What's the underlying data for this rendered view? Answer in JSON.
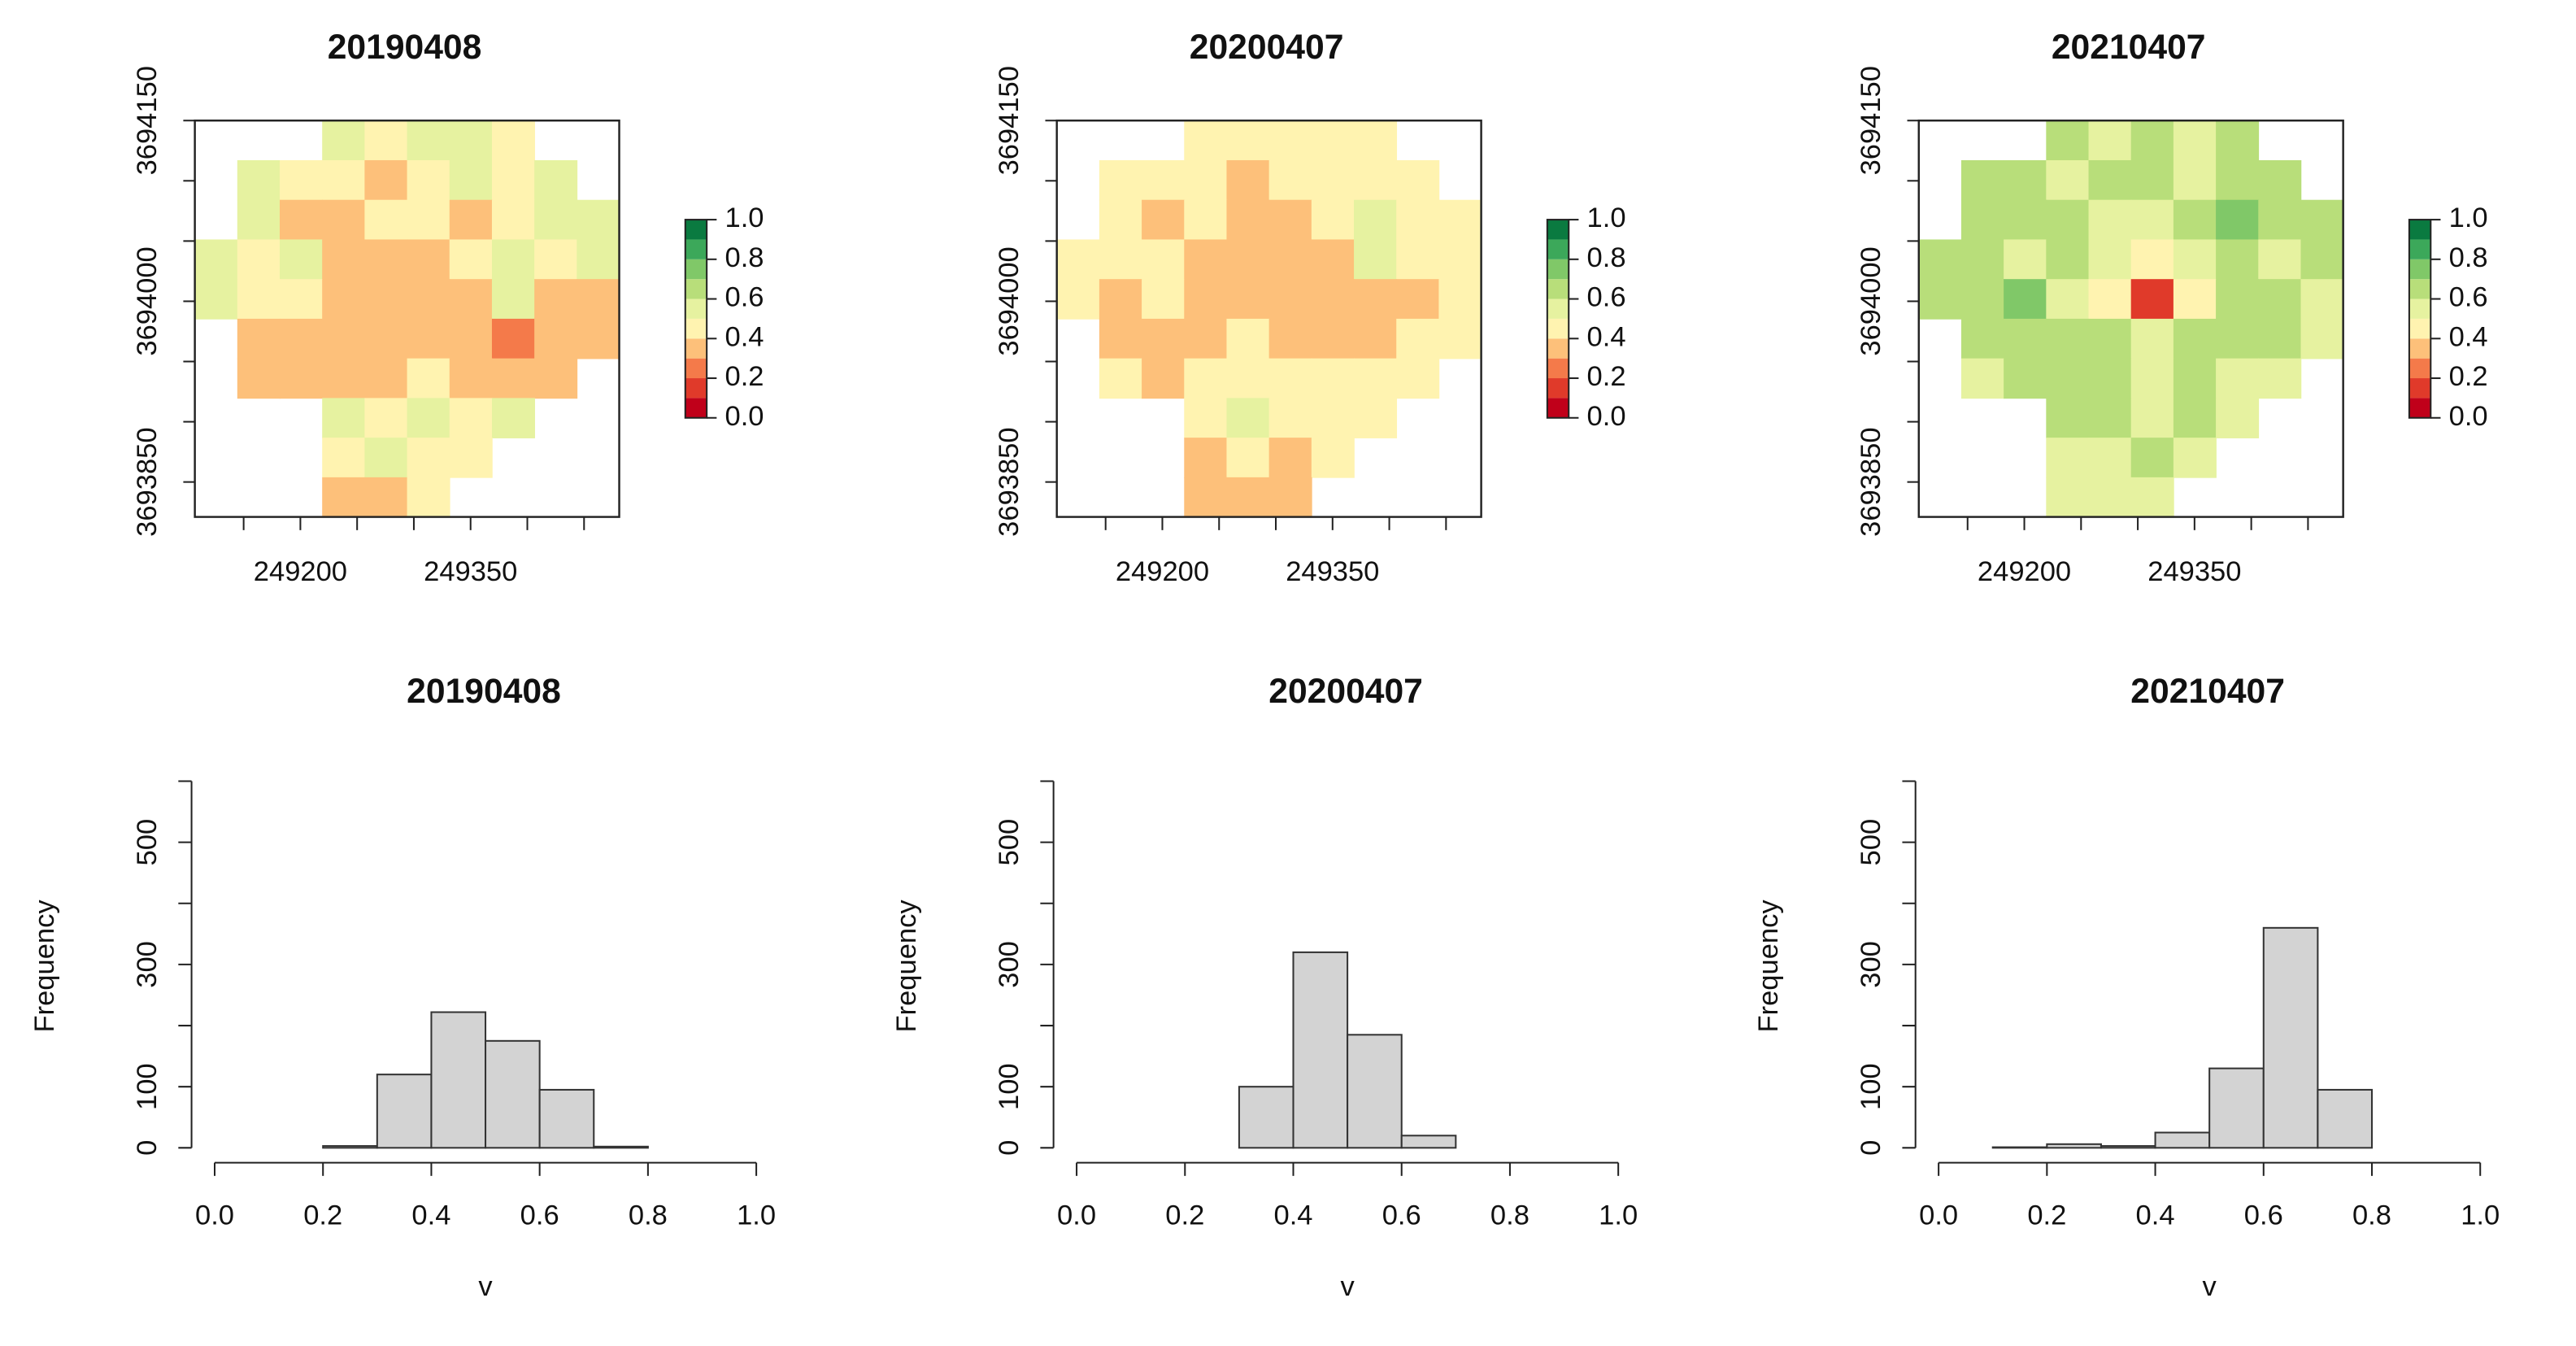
{
  "chart_data": [
    {
      "type": "heatmap",
      "title": "20190408",
      "xlim": [
        249107,
        249481
      ],
      "xticks": [
        249200,
        249350
      ],
      "xticks_minor": [
        249150,
        249250,
        249300,
        249400,
        249450
      ],
      "ylim": [
        3693821,
        3694150
      ],
      "yticks": [
        3694150,
        3694000,
        3693850
      ],
      "yticks_minor": [
        3694100,
        3694050,
        3693950,
        3693900
      ],
      "colorbar": {
        "colors": [
          "#c0001a",
          "#e03a2a",
          "#f47a4a",
          "#fdc07a",
          "#fff3b0",
          "#e6f2a0",
          "#b8de7a",
          "#80c868",
          "#3ca85a",
          "#0a7a40"
        ],
        "lim": [
          0,
          1
        ],
        "ticks": [
          {
            "value": 0,
            "label": "0.0"
          },
          0.2,
          0.4,
          0.6,
          0.8,
          {
            "value": 1,
            "label": "1.0"
          }
        ]
      },
      "values": [
        [
          null,
          null,
          null,
          0.55,
          0.45,
          0.55,
          0.55,
          0.45,
          null,
          null
        ],
        [
          null,
          0.55,
          0.45,
          0.45,
          0.35,
          0.45,
          0.55,
          0.45,
          0.55,
          null
        ],
        [
          null,
          0.55,
          0.35,
          0.35,
          0.45,
          0.45,
          0.35,
          0.45,
          0.55,
          0.55
        ],
        [
          0.55,
          0.45,
          0.55,
          0.35,
          0.35,
          0.35,
          0.45,
          0.55,
          0.45,
          0.55
        ],
        [
          0.55,
          0.45,
          0.45,
          0.35,
          0.32,
          0.32,
          0.35,
          0.55,
          0.35,
          0.35
        ],
        [
          null,
          0.35,
          0.35,
          0.35,
          0.35,
          0.35,
          0.35,
          0.28,
          0.35,
          0.35
        ],
        [
          null,
          0.33,
          0.35,
          0.35,
          0.35,
          0.45,
          0.35,
          0.35,
          0.35,
          null
        ],
        [
          null,
          null,
          null,
          0.55,
          0.45,
          0.55,
          0.45,
          0.55,
          null,
          null
        ],
        [
          null,
          null,
          null,
          0.45,
          0.55,
          0.45,
          0.45,
          null,
          null,
          null
        ],
        [
          null,
          null,
          null,
          0.35,
          0.35,
          0.45,
          null,
          null,
          null,
          null
        ]
      ]
    },
    {
      "type": "heatmap",
      "title": "20200407",
      "xlim": [
        249107,
        249481
      ],
      "xticks": [
        249200,
        249350
      ],
      "xticks_minor": [
        249150,
        249250,
        249300,
        249400,
        249450
      ],
      "ylim": [
        3693821,
        3694150
      ],
      "yticks": [
        3694150,
        3694000,
        3693850
      ],
      "yticks_minor": [
        3694100,
        3694050,
        3693950,
        3693900
      ],
      "colorbar": {
        "colors": [
          "#c0001a",
          "#e03a2a",
          "#f47a4a",
          "#fdc07a",
          "#fff3b0",
          "#e6f2a0",
          "#b8de7a",
          "#80c868",
          "#3ca85a",
          "#0a7a40"
        ],
        "lim": [
          0,
          1
        ],
        "ticks": [
          {
            "value": 0,
            "label": "0.0"
          },
          0.2,
          0.4,
          0.6,
          0.8,
          {
            "value": 1,
            "label": "1.0"
          }
        ]
      },
      "values": [
        [
          null,
          null,
          null,
          0.45,
          0.45,
          0.45,
          0.45,
          0.45,
          null,
          null
        ],
        [
          null,
          0.45,
          0.45,
          0.45,
          0.35,
          0.45,
          0.45,
          0.45,
          0.45,
          null
        ],
        [
          null,
          0.45,
          0.35,
          0.45,
          0.35,
          0.35,
          0.45,
          0.55,
          0.45,
          0.45
        ],
        [
          0.45,
          0.45,
          0.45,
          0.35,
          0.35,
          0.35,
          0.35,
          0.55,
          0.45,
          0.45
        ],
        [
          0.45,
          0.35,
          0.45,
          0.35,
          0.35,
          0.35,
          0.35,
          0.35,
          0.35,
          0.45
        ],
        [
          null,
          0.35,
          0.35,
          0.35,
          0.45,
          0.35,
          0.35,
          0.35,
          0.45,
          0.45
        ],
        [
          null,
          0.45,
          0.35,
          0.45,
          0.45,
          0.45,
          0.45,
          0.45,
          0.45,
          null
        ],
        [
          null,
          null,
          null,
          0.45,
          0.55,
          0.45,
          0.45,
          0.45,
          null,
          null
        ],
        [
          null,
          null,
          null,
          0.35,
          0.45,
          0.35,
          0.45,
          null,
          null,
          null
        ],
        [
          null,
          null,
          null,
          0.35,
          0.35,
          0.35,
          null,
          null,
          null,
          null
        ]
      ]
    },
    {
      "type": "heatmap",
      "title": "20210407",
      "xlim": [
        249107,
        249481
      ],
      "xticks": [
        249200,
        249350
      ],
      "xticks_minor": [
        249150,
        249250,
        249300,
        249400,
        249450
      ],
      "ylim": [
        3693821,
        3694150
      ],
      "yticks": [
        3694150,
        3694000,
        3693850
      ],
      "yticks_minor": [
        3694100,
        3694050,
        3693950,
        3693900
      ],
      "colorbar": {
        "colors": [
          "#c0001a",
          "#e03a2a",
          "#f47a4a",
          "#fdc07a",
          "#fff3b0",
          "#e6f2a0",
          "#b8de7a",
          "#80c868",
          "#3ca85a",
          "#0a7a40"
        ],
        "lim": [
          0,
          1
        ],
        "ticks": [
          {
            "value": 0,
            "label": "0.0"
          },
          0.2,
          0.4,
          0.6,
          0.8,
          {
            "value": 1,
            "label": "1.0"
          }
        ]
      },
      "values": [
        [
          null,
          null,
          null,
          0.65,
          0.55,
          0.65,
          0.55,
          0.65,
          null,
          null
        ],
        [
          null,
          0.65,
          0.65,
          0.55,
          0.65,
          0.65,
          0.55,
          0.65,
          0.65,
          null
        ],
        [
          null,
          0.65,
          0.65,
          0.65,
          0.55,
          0.55,
          0.65,
          0.75,
          0.65,
          0.65
        ],
        [
          0.65,
          0.65,
          0.55,
          0.65,
          0.55,
          0.45,
          0.55,
          0.65,
          0.55,
          0.65
        ],
        [
          0.65,
          0.65,
          0.75,
          0.55,
          0.45,
          0.18,
          0.45,
          0.65,
          0.65,
          0.55
        ],
        [
          null,
          0.65,
          0.65,
          0.65,
          0.65,
          0.55,
          0.65,
          0.65,
          0.65,
          0.55
        ],
        [
          null,
          0.55,
          0.65,
          0.65,
          0.65,
          0.55,
          0.65,
          0.55,
          0.55,
          null
        ],
        [
          null,
          null,
          null,
          0.65,
          0.65,
          0.55,
          0.65,
          0.55,
          null,
          null
        ],
        [
          null,
          null,
          null,
          0.55,
          0.55,
          0.65,
          0.55,
          null,
          null,
          null
        ],
        [
          null,
          null,
          null,
          0.55,
          0.55,
          0.55,
          null,
          null,
          null,
          null
        ]
      ]
    },
    {
      "type": "histogram",
      "title": "20190408",
      "xlabel": "v",
      "ylabel": "Frequency",
      "bins": [
        0,
        0.1,
        0.2,
        0.3,
        0.4,
        0.5,
        0.6,
        0.7,
        0.8,
        0.9,
        1
      ],
      "values": [
        0,
        0,
        3,
        120,
        222,
        175,
        95,
        2,
        0,
        0
      ],
      "color": "#d3d3d3",
      "xlim": [
        0,
        1
      ],
      "xticks": [
        {
          "value": 0,
          "label": "0.0"
        },
        0.2,
        0.4,
        0.6,
        0.8,
        {
          "value": 1,
          "label": "1.0"
        }
      ],
      "ylim": [
        0,
        600
      ],
      "yticks": [
        0,
        100,
        300,
        500
      ],
      "yticks_minor": [
        200,
        400,
        600
      ]
    },
    {
      "type": "histogram",
      "title": "20200407",
      "xlabel": "v",
      "ylabel": "Frequency",
      "bins": [
        0,
        0.1,
        0.2,
        0.3,
        0.4,
        0.5,
        0.6,
        0.7,
        0.8,
        0.9,
        1
      ],
      "values": [
        0,
        0,
        0,
        100,
        320,
        185,
        20,
        0,
        0,
        0
      ],
      "color": "#d3d3d3",
      "xlim": [
        0,
        1
      ],
      "xticks": [
        {
          "value": 0,
          "label": "0.0"
        },
        0.2,
        0.4,
        0.6,
        0.8,
        {
          "value": 1,
          "label": "1.0"
        }
      ],
      "ylim": [
        0,
        600
      ],
      "yticks": [
        0,
        100,
        300,
        500
      ],
      "yticks_minor": [
        200,
        400,
        600
      ]
    },
    {
      "type": "histogram",
      "title": "20210407",
      "xlabel": "v",
      "ylabel": "Frequency",
      "bins": [
        0,
        0.1,
        0.2,
        0.3,
        0.4,
        0.5,
        0.6,
        0.7,
        0.8,
        0.9,
        1
      ],
      "values": [
        0,
        1,
        6,
        3,
        25,
        130,
        360,
        95,
        0,
        0
      ],
      "color": "#d3d3d3",
      "xlim": [
        0,
        1
      ],
      "xticks": [
        {
          "value": 0,
          "label": "0.0"
        },
        0.2,
        0.4,
        0.6,
        0.8,
        {
          "value": 1,
          "label": "1.0"
        }
      ],
      "ylim": [
        0,
        600
      ],
      "yticks": [
        0,
        100,
        300,
        500
      ],
      "yticks_minor": [
        200,
        400,
        600
      ]
    }
  ]
}
